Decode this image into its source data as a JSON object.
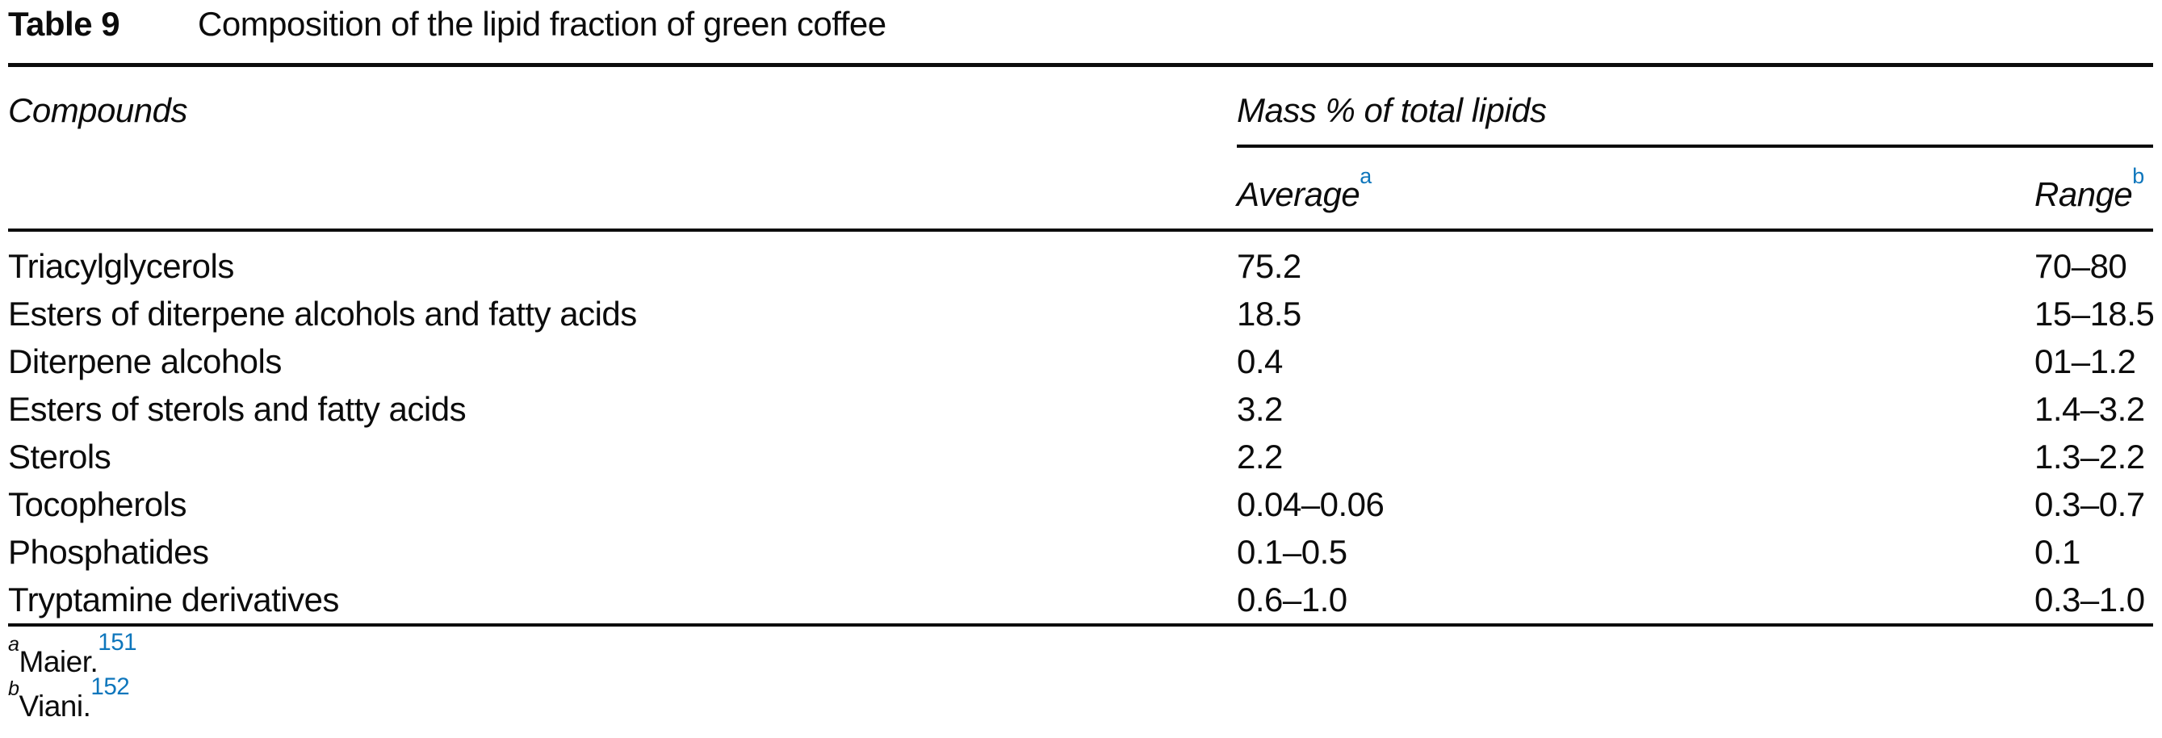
{
  "table": {
    "label": "Table 9",
    "title": "Composition of the lipid fraction of green coffee",
    "columns": {
      "compounds": "Compounds",
      "group": "Mass % of total lipids",
      "average": "Average",
      "average_note": "a",
      "range": "Range",
      "range_note": "b"
    },
    "rows": [
      {
        "compound": "Triacylglycerols",
        "average": "75.2",
        "range": "70–80"
      },
      {
        "compound": "Esters of diterpene alcohols and fatty acids",
        "average": "18.5",
        "range": "15–18.5"
      },
      {
        "compound": "Diterpene alcohols",
        "average": "0.4",
        "range": "01–1.2"
      },
      {
        "compound": "Esters of sterols and fatty acids",
        "average": "3.2",
        "range": "1.4–3.2"
      },
      {
        "compound": "Sterols",
        "average": "2.2",
        "range": "1.3–2.2"
      },
      {
        "compound": "Tocopherols",
        "average": "0.04–0.06",
        "range": "0.3–0.7"
      },
      {
        "compound": "Phosphatides",
        "average": "0.1–0.5",
        "range": "0.1"
      },
      {
        "compound": "Tryptamine derivatives",
        "average": "0.6–1.0",
        "range": "0.3–1.0"
      }
    ],
    "footnotes": [
      {
        "marker": "a",
        "text": "Maier.",
        "ref": "151"
      },
      {
        "marker": "b",
        "text": "Viani.",
        "ref": "152"
      }
    ],
    "colors": {
      "text": "#0c0c0c",
      "reference_blue": "#0e76bc"
    }
  }
}
